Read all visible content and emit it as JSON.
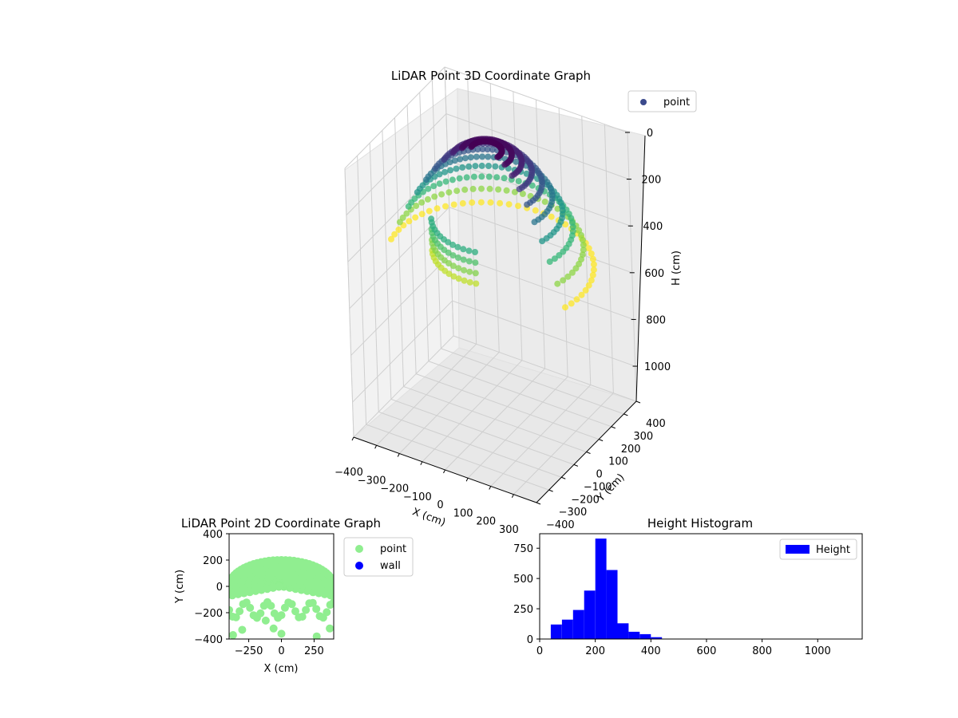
{
  "chart_data": [
    {
      "type": "scatter",
      "projection": "3d",
      "title": "LiDAR Point 3D Coordinate Graph",
      "xlabel": "X (cm)",
      "ylabel": "Y (cm)",
      "zlabel": "H (cm)",
      "xticks": [
        "−400",
        "−300",
        "−200",
        "−100",
        "0",
        "100",
        "200",
        "300"
      ],
      "yticks": [
        "−400",
        "−300",
        "−200",
        "−100",
        "0",
        "100",
        "200",
        "300",
        "400"
      ],
      "zticks": [
        "0",
        "200",
        "400",
        "600",
        "800",
        "1000"
      ],
      "xlim": [
        -400,
        400
      ],
      "ylim": [
        -400,
        400
      ],
      "zlim": [
        1150,
        0
      ],
      "grid": true,
      "legend": {
        "placement": "upper-right",
        "entries": [
          "point"
        ]
      },
      "colormap": "viridis",
      "colorbar_visible": false,
      "series": [
        {
          "name": "point",
          "legend_color": "#3b4a8c",
          "shape": "dome",
          "radius": 400,
          "h_top": 0,
          "h_range": [
            0,
            480
          ],
          "arc_start_deg": -15,
          "arc_end_deg": 190,
          "lower_arc_start_deg": 75,
          "lower_arc_end_deg": 150
        }
      ]
    },
    {
      "type": "scatter",
      "title": "LiDAR Point 2D Coordinate Graph",
      "xlabel": "X (cm)",
      "ylabel": "Y (cm)",
      "xticks": [
        "−250",
        "0",
        "250"
      ],
      "yticks": [
        "400",
        "200",
        "0",
        "−200",
        "−400"
      ],
      "xlim": [
        -400,
        400
      ],
      "ylim": [
        -400,
        400
      ],
      "legend": {
        "placement": "outside-right",
        "entries": [
          "point",
          "wall"
        ]
      },
      "series": [
        {
          "name": "point",
          "color": "#90ee90"
        },
        {
          "name": "wall",
          "color": "#0000ff",
          "values": []
        }
      ],
      "outliers": [
        [
          -300,
          -330
        ],
        [
          -120,
          -260
        ],
        [
          -60,
          -320
        ],
        [
          0,
          -360
        ],
        [
          270,
          -380
        ],
        [
          370,
          -320
        ],
        [
          -370,
          -370
        ]
      ]
    },
    {
      "type": "bar",
      "subtype": "histogram",
      "title": "Height Histogram",
      "xticks": [
        "0",
        "200",
        "400",
        "600",
        "800",
        "1000"
      ],
      "yticks": [
        "0",
        "250",
        "500",
        "750"
      ],
      "xlim": [
        0,
        1160
      ],
      "ylim": [
        0,
        870
      ],
      "legend": {
        "placement": "upper-right",
        "entries": [
          "Height"
        ]
      },
      "series": [
        {
          "name": "Height",
          "color": "#0000ff",
          "bin_edges": [
            40,
            80,
            120,
            160,
            200,
            240,
            280,
            320,
            360,
            400,
            440
          ],
          "values": [
            120,
            160,
            240,
            400,
            830,
            570,
            130,
            60,
            40,
            15,
            5
          ]
        }
      ]
    }
  ]
}
